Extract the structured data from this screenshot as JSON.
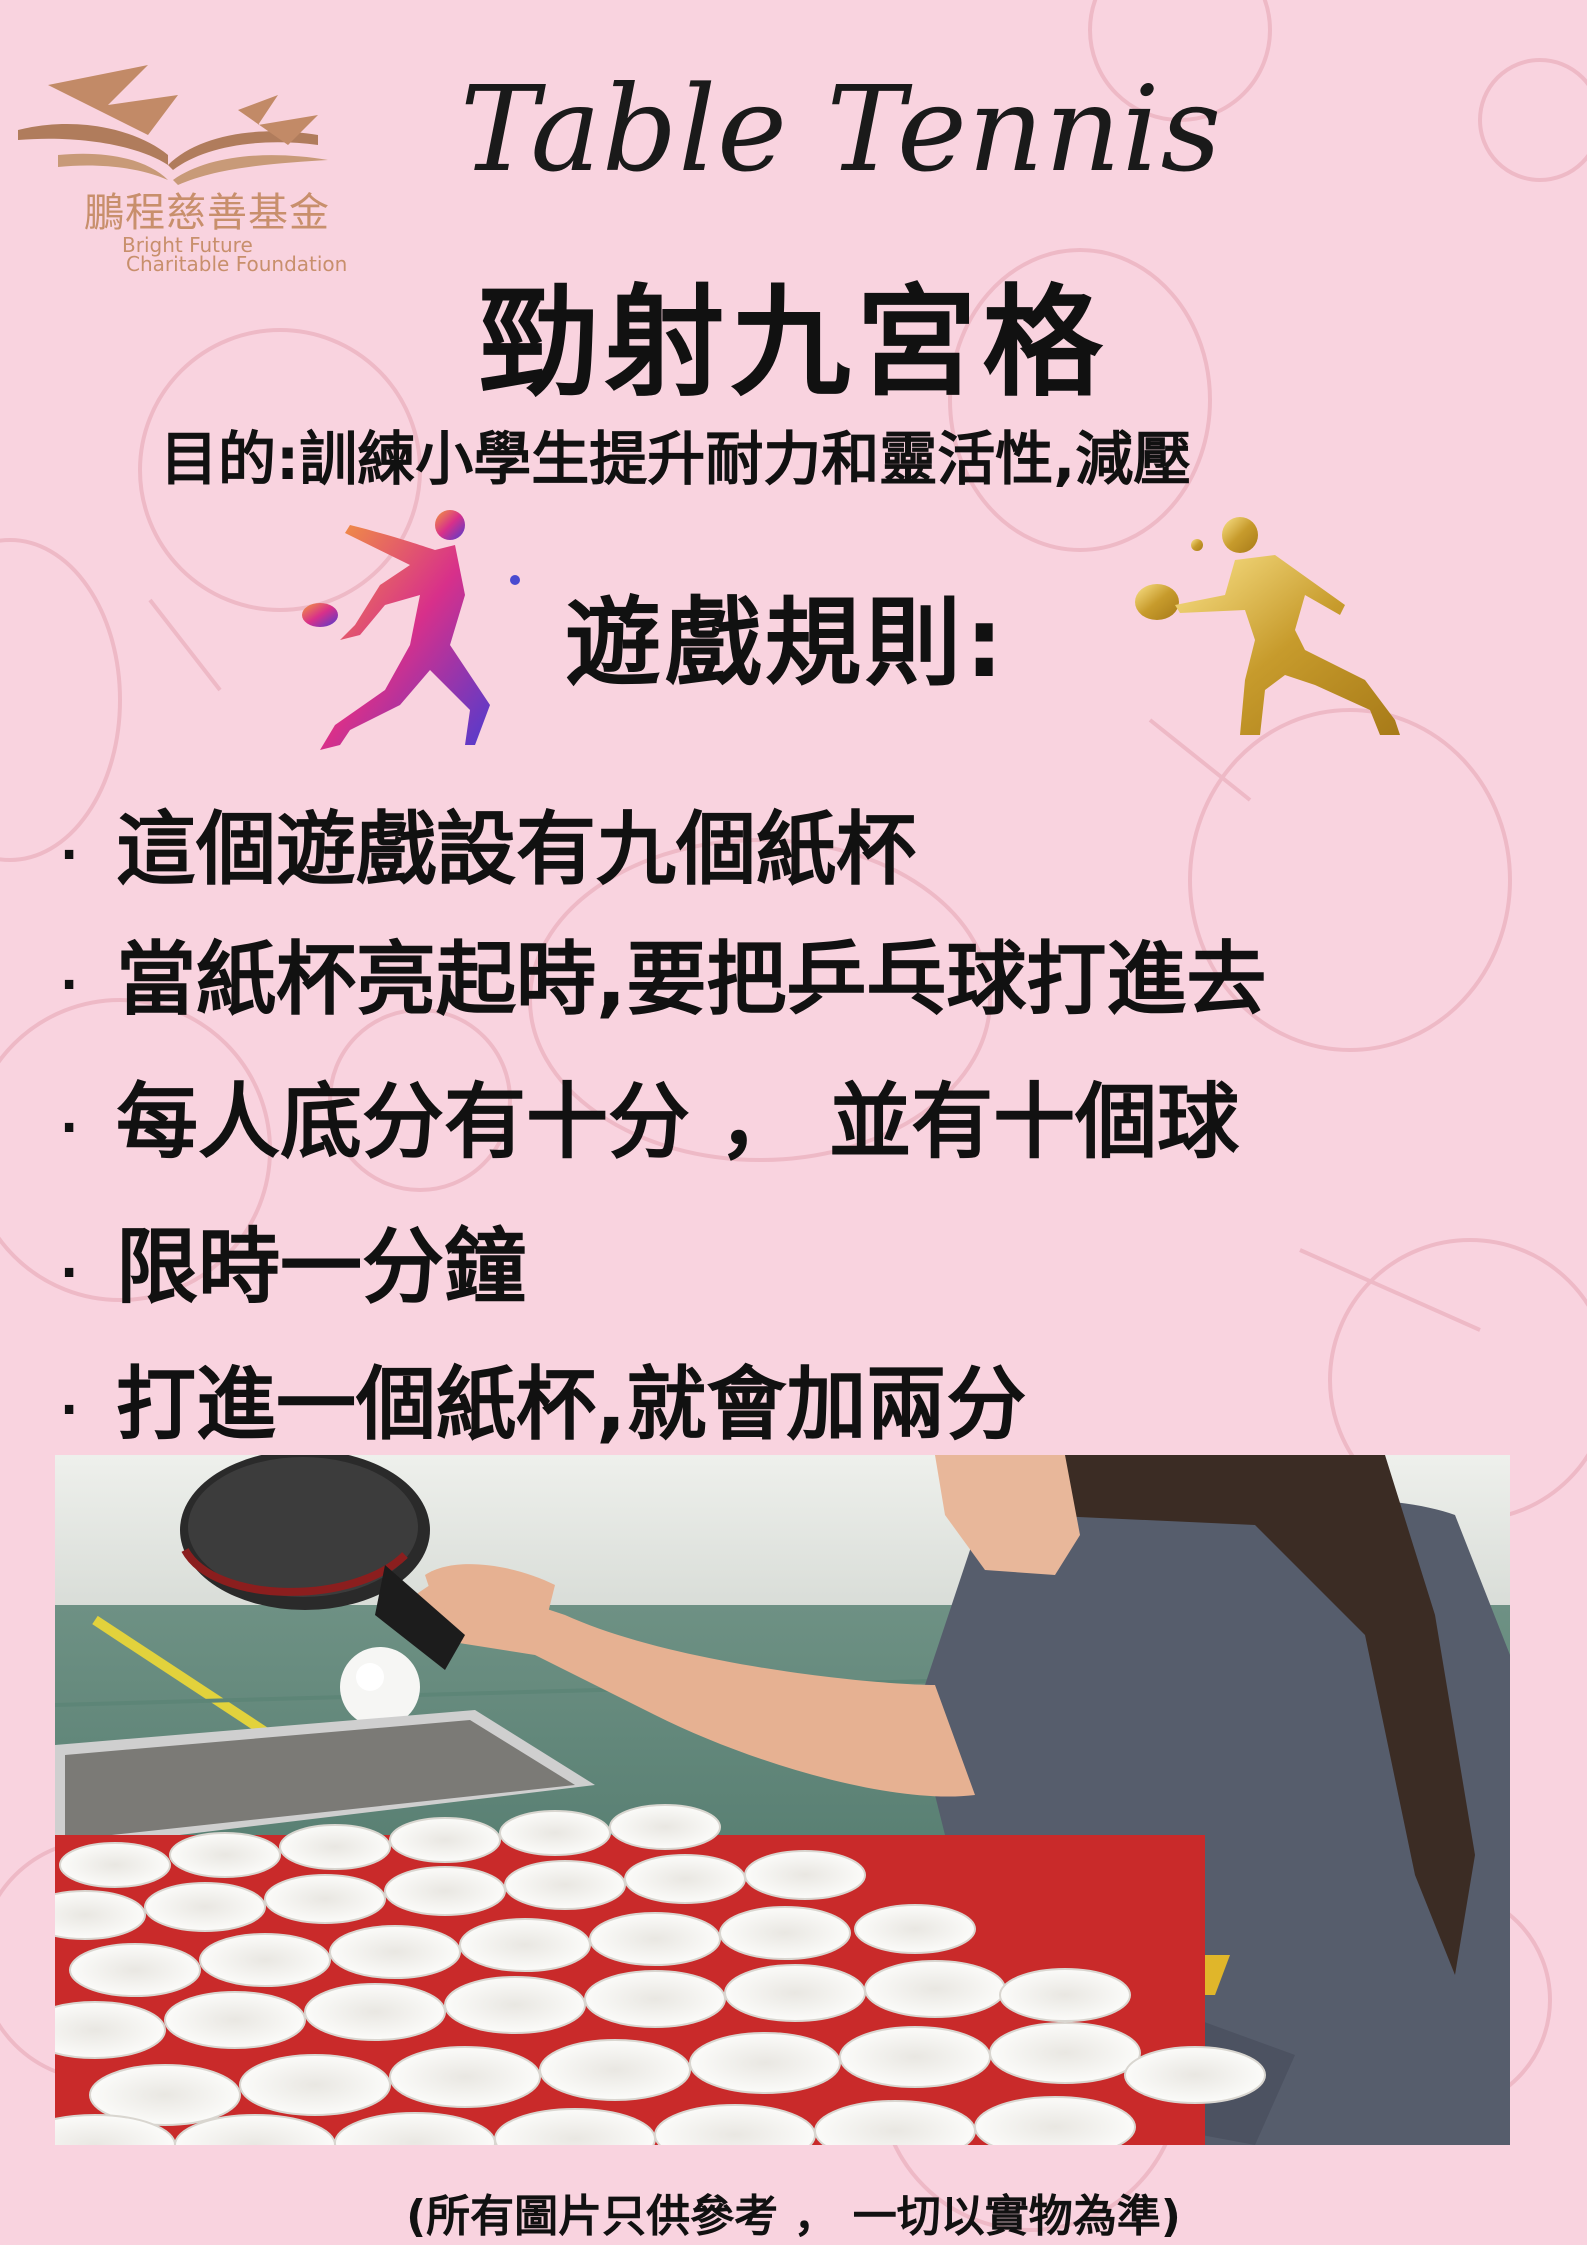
{
  "logo": {
    "name_cn": "鵬程慈善基金",
    "name_en_line1": "Bright Future",
    "name_en_line2": "Charitable Foundation"
  },
  "script_title": "Table Tennis",
  "main_title": "勁射九宮格",
  "purpose": "目的:訓練小學生提升耐力和靈活性,減壓",
  "rules_title": "遊戲規則:",
  "rules": [
    "這個遊戲設有九個紙杯",
    "當紙杯亮起時,要把乒乓球打進去",
    "每人底分有十分 ， 並有十個球",
    "限時一分鐘",
    "打進一個紙杯,就會加兩分"
  ],
  "bullet": "·",
  "footnote": "(所有圖片只供參考 ， 一切以實物為準)",
  "colors": {
    "background": "#f9d3df",
    "logo": "#c88f6c",
    "text": "#111111"
  }
}
